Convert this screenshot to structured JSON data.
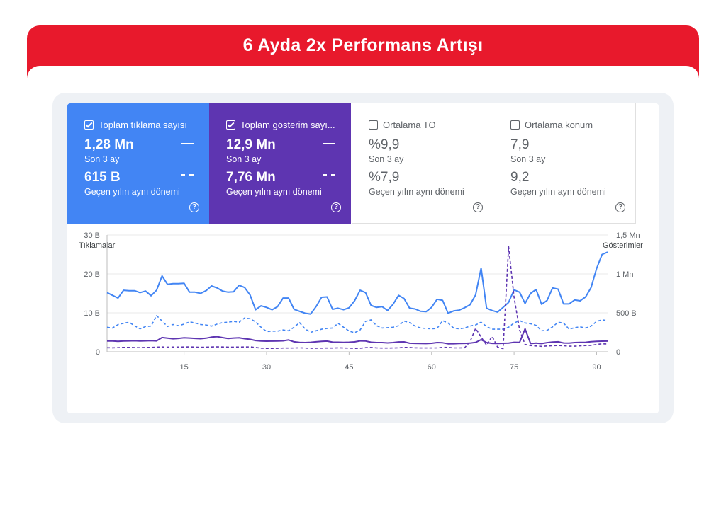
{
  "banner": {
    "title": "6 Ayda 2x Performans Artışı"
  },
  "cards": [
    {
      "label": "Toplam tıklama sayısı",
      "checked": true,
      "current": "1,28 Mn",
      "current_period": "Son 3 ay",
      "previous": "615 B",
      "previous_period": "Geçen yılın aynı dönemi"
    },
    {
      "label": "Toplam gösterim sayı...",
      "checked": true,
      "current": "12,9 Mn",
      "current_period": "Son 3 ay",
      "previous": "7,76 Mn",
      "previous_period": "Geçen yılın aynı dönemi"
    },
    {
      "label": "Ortalama TO",
      "checked": false,
      "current": "%9,9",
      "current_period": "Son 3 ay",
      "previous": "%7,9",
      "previous_period": "Geçen yılın aynı dönemi"
    },
    {
      "label": "Ortalama konum",
      "checked": false,
      "current": "7,9",
      "current_period": "Son 3 ay",
      "previous": "9,2",
      "previous_period": "Geçen yılın aynı dönemi"
    }
  ],
  "chart_data": {
    "type": "line",
    "left_axis_title": "Tıklamalar",
    "right_axis_title": "Gösterimler",
    "left_ticks": [
      "0",
      "10 B",
      "20 B",
      "30 B"
    ],
    "right_ticks": [
      "0",
      "500 B",
      "1 Mn",
      "1,5 Mn"
    ],
    "x_ticks": [
      15,
      30,
      45,
      60,
      75,
      90
    ],
    "xlim": [
      1,
      92
    ],
    "ylim_left": [
      0,
      30000
    ],
    "ylim_right": [
      0,
      1500000
    ],
    "colors": {
      "clicks": "#4285f4",
      "impressions": "#5e35b1"
    },
    "series": [
      {
        "name": "",
        "axis": "left",
        "style": "solid",
        "metric": "clicks",
        "values": [
          15200,
          14500,
          13800,
          15800,
          15700,
          15700,
          15200,
          15600,
          14400,
          15800,
          19500,
          17300,
          17500,
          17500,
          17600,
          15300,
          15300,
          15000,
          15700,
          16900,
          16400,
          15600,
          15300,
          15400,
          17100,
          16500,
          14600,
          10800,
          11800,
          11400,
          10800,
          11600,
          13800,
          13800,
          10900,
          10400,
          9900,
          9700,
          11600,
          14000,
          14100,
          10900,
          11200,
          10800,
          11300,
          13100,
          15800,
          15200,
          11900,
          11400,
          11600,
          10600,
          12200,
          14500,
          13700,
          11200,
          11000,
          10400,
          10300,
          11400,
          13500,
          13200,
          9900,
          10500,
          10700,
          11300,
          12100,
          14600,
          21500,
          11200,
          10600,
          10200,
          11400,
          12700,
          15900,
          15300,
          12400,
          15000,
          16000,
          12200,
          13200,
          16400,
          16100,
          12300,
          12300,
          13300,
          13100,
          14100,
          16500,
          21400,
          25000,
          25600
        ]
      },
      {
        "name": "",
        "axis": "left",
        "style": "dashed",
        "metric": "clicks",
        "values": [
          6300,
          6100,
          7000,
          7300,
          7600,
          6700,
          5900,
          6500,
          6600,
          9300,
          7900,
          6500,
          7000,
          6700,
          7100,
          7700,
          7400,
          7000,
          6900,
          6600,
          7100,
          7500,
          7600,
          7800,
          7600,
          8700,
          8500,
          7700,
          6300,
          5200,
          5300,
          5300,
          5600,
          5400,
          6300,
          7500,
          5900,
          5000,
          5400,
          5800,
          6000,
          6100,
          7300,
          6300,
          5300,
          4900,
          5600,
          7800,
          8200,
          6700,
          6100,
          6200,
          6300,
          6700,
          7900,
          7500,
          6600,
          6100,
          6000,
          5900,
          6000,
          8000,
          7400,
          6100,
          5900,
          6100,
          6600,
          6900,
          7600,
          6500,
          5800,
          5800,
          5800,
          6300,
          7400,
          8000,
          7400,
          7200,
          6800,
          5400,
          5500,
          6400,
          7600,
          7400,
          5800,
          6200,
          6400,
          6100,
          6600,
          7800,
          8200,
          8000
        ]
      },
      {
        "name": "",
        "axis": "right",
        "style": "solid",
        "metric": "impressions",
        "values": [
          138000,
          138000,
          135000,
          138000,
          140000,
          142000,
          139000,
          141000,
          143000,
          140000,
          183000,
          175000,
          167000,
          172000,
          179000,
          176000,
          172000,
          168000,
          175000,
          188000,
          195000,
          182000,
          171000,
          176000,
          179000,
          168000,
          160000,
          145000,
          138000,
          136000,
          137000,
          138000,
          141000,
          152000,
          128000,
          121000,
          118000,
          122000,
          128000,
          135000,
          137000,
          124000,
          123000,
          121000,
          123000,
          127000,
          140000,
          138000,
          123000,
          118000,
          118000,
          114000,
          118000,
          126000,
          127000,
          110000,
          108000,
          106000,
          105000,
          109000,
          118000,
          115000,
          103000,
          104000,
          106000,
          108000,
          111000,
          120000,
          155000,
          118000,
          108000,
          107000,
          109000,
          112000,
          122000,
          120000,
          295000,
          105000,
          112000,
          105000,
          117000,
          125000,
          128000,
          113000,
          112000,
          118000,
          120000,
          122000,
          130000,
          135000,
          136000,
          137000
        ]
      },
      {
        "name": "",
        "axis": "right",
        "style": "dashed",
        "metric": "impressions",
        "values": [
          52000,
          51000,
          53000,
          56000,
          56000,
          54000,
          53000,
          56000,
          56000,
          60000,
          62000,
          60000,
          61000,
          61000,
          62000,
          63000,
          61000,
          58000,
          59000,
          62000,
          64000,
          62000,
          60000,
          60000,
          61000,
          62000,
          63000,
          55000,
          47000,
          44000,
          44000,
          45000,
          48000,
          48000,
          49000,
          51000,
          48000,
          45000,
          46000,
          47000,
          48000,
          48000,
          51000,
          49000,
          47000,
          44000,
          46000,
          53000,
          55000,
          50000,
          48000,
          48000,
          49000,
          51000,
          56000,
          55000,
          51000,
          49000,
          50000,
          49000,
          50000,
          57000,
          56000,
          50000,
          50000,
          52000,
          130000,
          300000,
          190000,
          85000,
          200000,
          60000,
          40000,
          1350000,
          700000,
          280000,
          95000,
          80000,
          75000,
          70000,
          75000,
          78000,
          80000,
          78000,
          72000,
          72000,
          76000,
          80000,
          82000,
          95000,
          103000,
          100000
        ]
      }
    ]
  }
}
